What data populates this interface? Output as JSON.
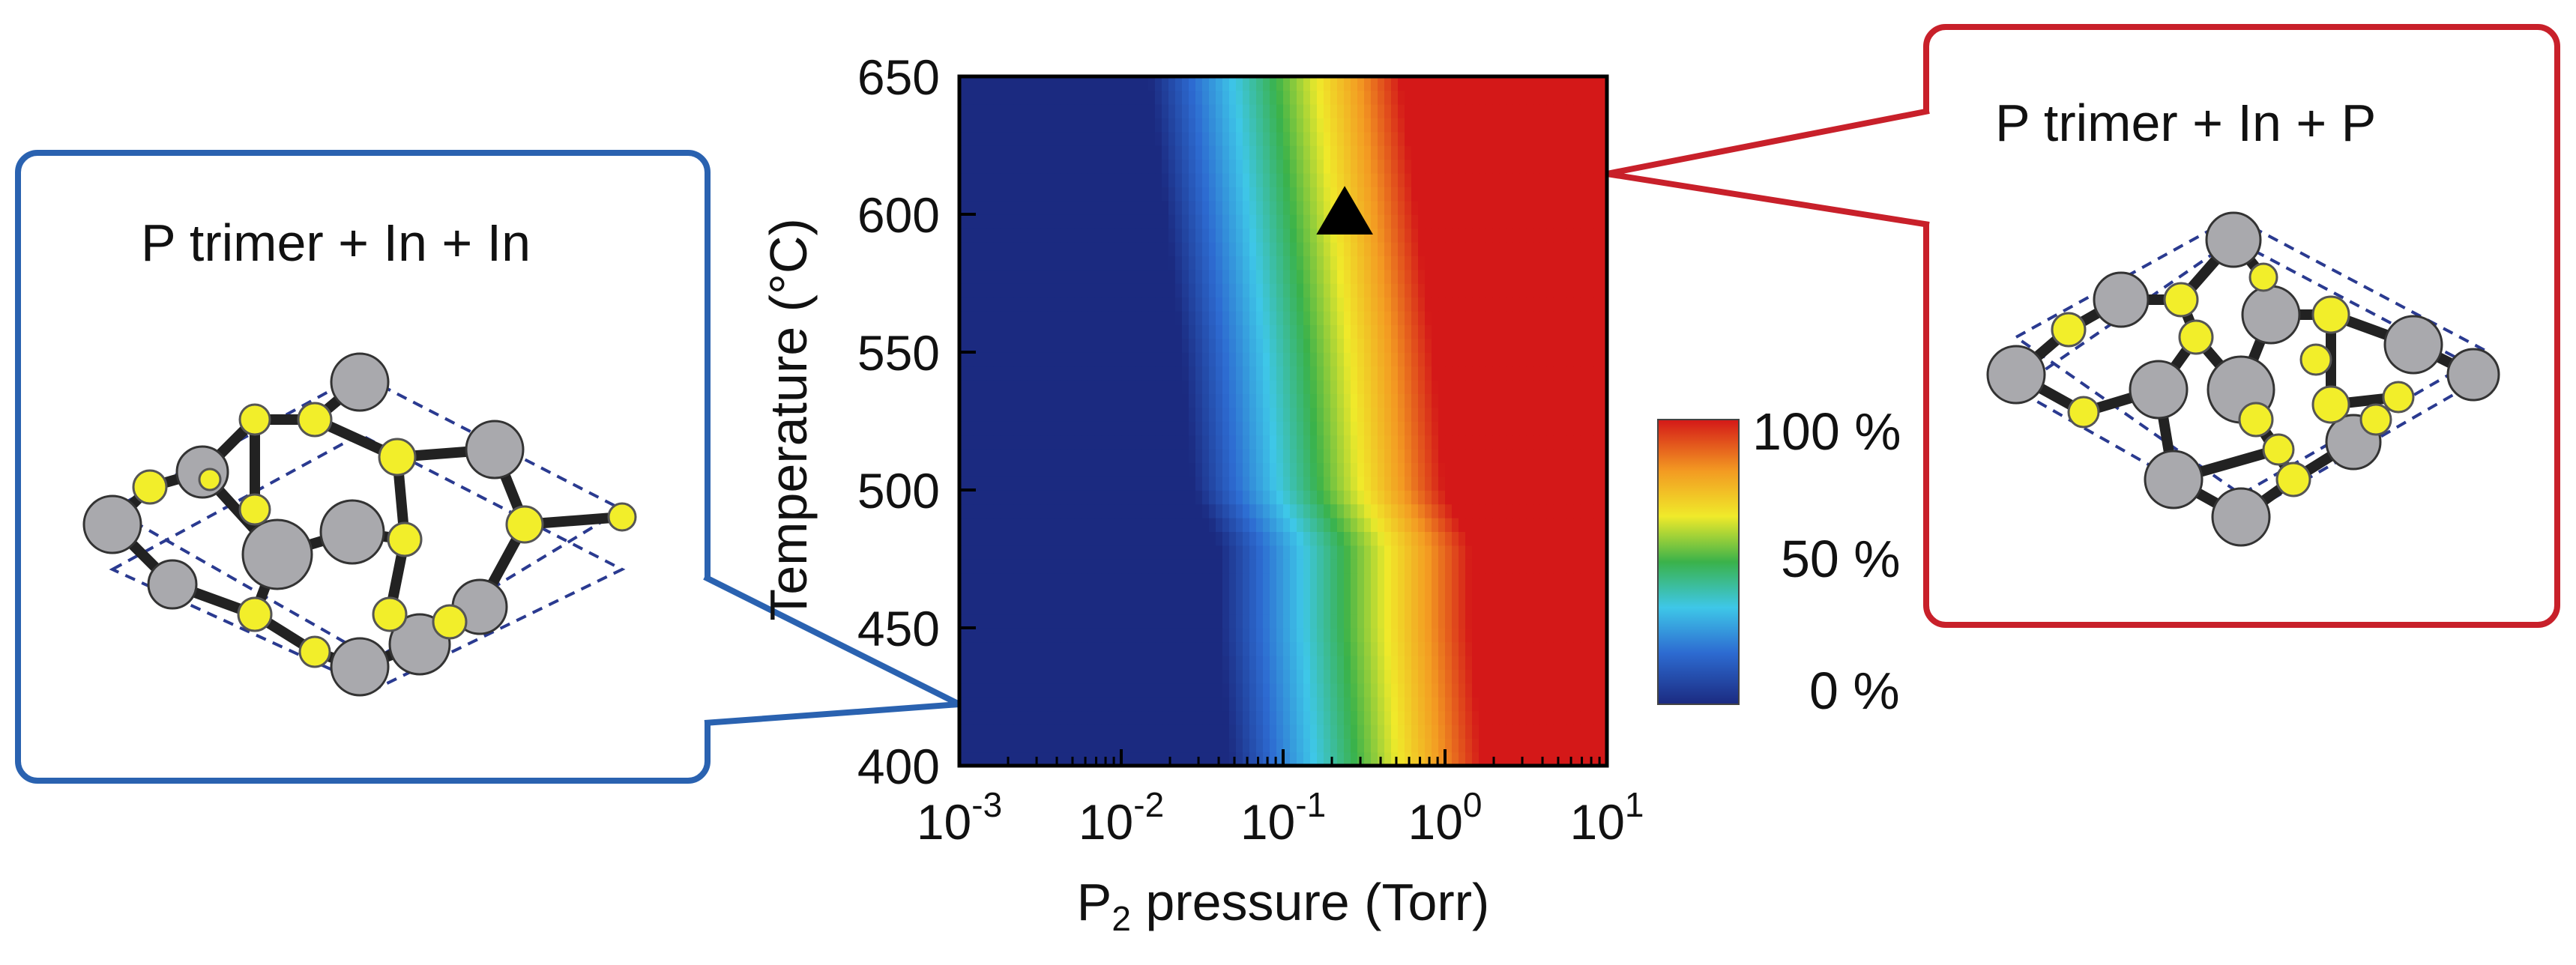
{
  "chart_data": {
    "type": "heatmap",
    "xlabel_main": "P",
    "xlabel_sub": "2",
    "xlabel_rest": " pressure (Torr)",
    "ylabel": "Temperature (°C)",
    "x_scale": "log",
    "xlim": [
      -3,
      1
    ],
    "x_ticks": [
      {
        "base": "10",
        "exp": "-3",
        "value": 0.001
      },
      {
        "base": "10",
        "exp": "-2",
        "value": 0.01
      },
      {
        "base": "10",
        "exp": "-1",
        "value": 0.1
      },
      {
        "base": "10",
        "exp": "0",
        "value": 1
      },
      {
        "base": "10",
        "exp": "1",
        "value": 10
      }
    ],
    "ylim": [
      400,
      650
    ],
    "y_ticks": [
      "400",
      "450",
      "500",
      "550",
      "600",
      "650"
    ],
    "contours": {
      "temperatures": [
        400,
        450,
        480,
        500,
        550,
        600,
        650
      ],
      "log_pressure_at_50pct": [
        -0.55,
        -0.62,
        -0.62,
        -0.78,
        -0.85,
        -0.95,
        -1.05
      ],
      "transition_width_decades": 1.55
    },
    "marker": {
      "shape": "triangle",
      "x": 0.24,
      "y": 600,
      "color": "#000000"
    },
    "colorbar": {
      "labels": [
        "100 %",
        "50 %",
        "0 %"
      ],
      "values": [
        100,
        50,
        0
      ],
      "colors": [
        "#1b2a80",
        "#2d6bd1",
        "#3ec7e8",
        "#3ab24a",
        "#f0ea2a",
        "#f39a22",
        "#d41818"
      ]
    }
  },
  "callouts": {
    "left": {
      "label": "P trimer + In + In",
      "border_color": "#2a62b0"
    },
    "right": {
      "label": "P trimer + In + P",
      "border_color": "#c8202a"
    }
  },
  "structure_colors": {
    "in_atom": "#a9a9ad",
    "p_atom": "#f2ee2a",
    "cell_outline": "#2a3a90"
  }
}
